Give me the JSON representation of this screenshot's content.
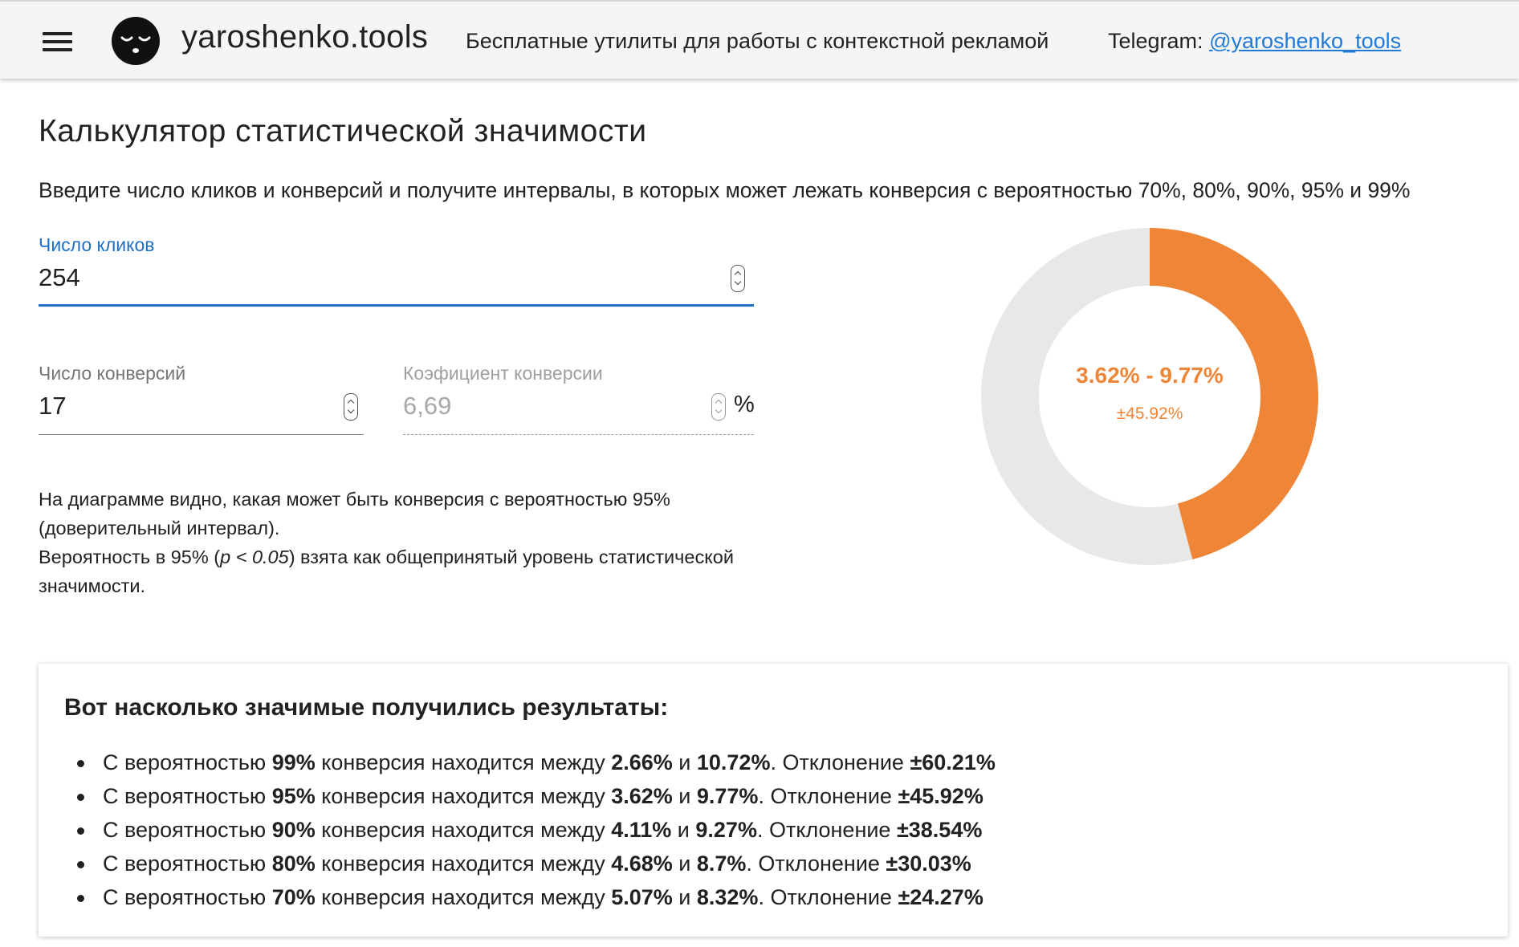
{
  "header": {
    "menu_icon": "hamburger-menu-icon",
    "logo_icon": "sleepy-face-logo-icon",
    "brand": "yaroshenko.tools",
    "tagline": "Бесплатные утилиты для работы с контекстной рекламой",
    "telegram_label": "Telegram: ",
    "telegram_link": "@yaroshenko_tools"
  },
  "page": {
    "title": "Калькулятор статистической значимости",
    "intro": "Введите число кликов и конверсий и получите интервалы, в которых может лежать конверсия с вероятностью 70%, 80%, 90%, 95% и 99%"
  },
  "form": {
    "clicks_label": "Число кликов",
    "clicks_value": "254",
    "conversions_label": "Число конверсий",
    "conversions_value": "17",
    "rate_label": "Коэфициент конверсии",
    "rate_value": "6,69",
    "rate_unit": "%"
  },
  "note": {
    "line1": "На диаграмме видно, какая может быть конверсия с вероятностью 95% (доверительный интервал).",
    "line2_pre": "Вероятность в 95% (",
    "line2_formula": "p < 0.05",
    "line2_post": ") взята как общепринятый уровень статистической значимости."
  },
  "chart_data": {
    "type": "pie",
    "center_label": "3.62% - 9.77%",
    "center_sublabel": "±45.92%",
    "slices": [
      {
        "value": 45.92,
        "color": "#ef8536"
      },
      {
        "value": 54.08,
        "color": "#e8e8e8"
      }
    ]
  },
  "results": {
    "title": "Вот насколько значимые получились результаты:",
    "items": [
      {
        "p1": "С вероятностью ",
        "prob": "99%",
        "p2": " конверсия находится между ",
        "low": "2.66%",
        "p3": " и ",
        "high": "10.72%",
        "p4": ". Отклонение ",
        "dev": "±60.21%"
      },
      {
        "p1": "С вероятностью ",
        "prob": "95%",
        "p2": " конверсия находится между ",
        "low": "3.62%",
        "p3": " и ",
        "high": "9.77%",
        "p4": ". Отклонение ",
        "dev": "±45.92%"
      },
      {
        "p1": "С вероятностью ",
        "prob": "90%",
        "p2": " конверсия находится между ",
        "low": "4.11%",
        "p3": " и ",
        "high": "9.27%",
        "p4": ". Отклонение ",
        "dev": "±38.54%"
      },
      {
        "p1": "С вероятностью ",
        "prob": "80%",
        "p2": " конверсия находится между ",
        "low": "4.68%",
        "p3": " и ",
        "high": "8.7%",
        "p4": ". Отклонение ",
        "dev": "±30.03%"
      },
      {
        "p1": "С вероятностью ",
        "prob": "70%",
        "p2": " конверсия находится между ",
        "low": "5.07%",
        "p3": " и ",
        "high": "8.32%",
        "p4": ". Отклонение ",
        "dev": "±24.27%"
      }
    ]
  }
}
